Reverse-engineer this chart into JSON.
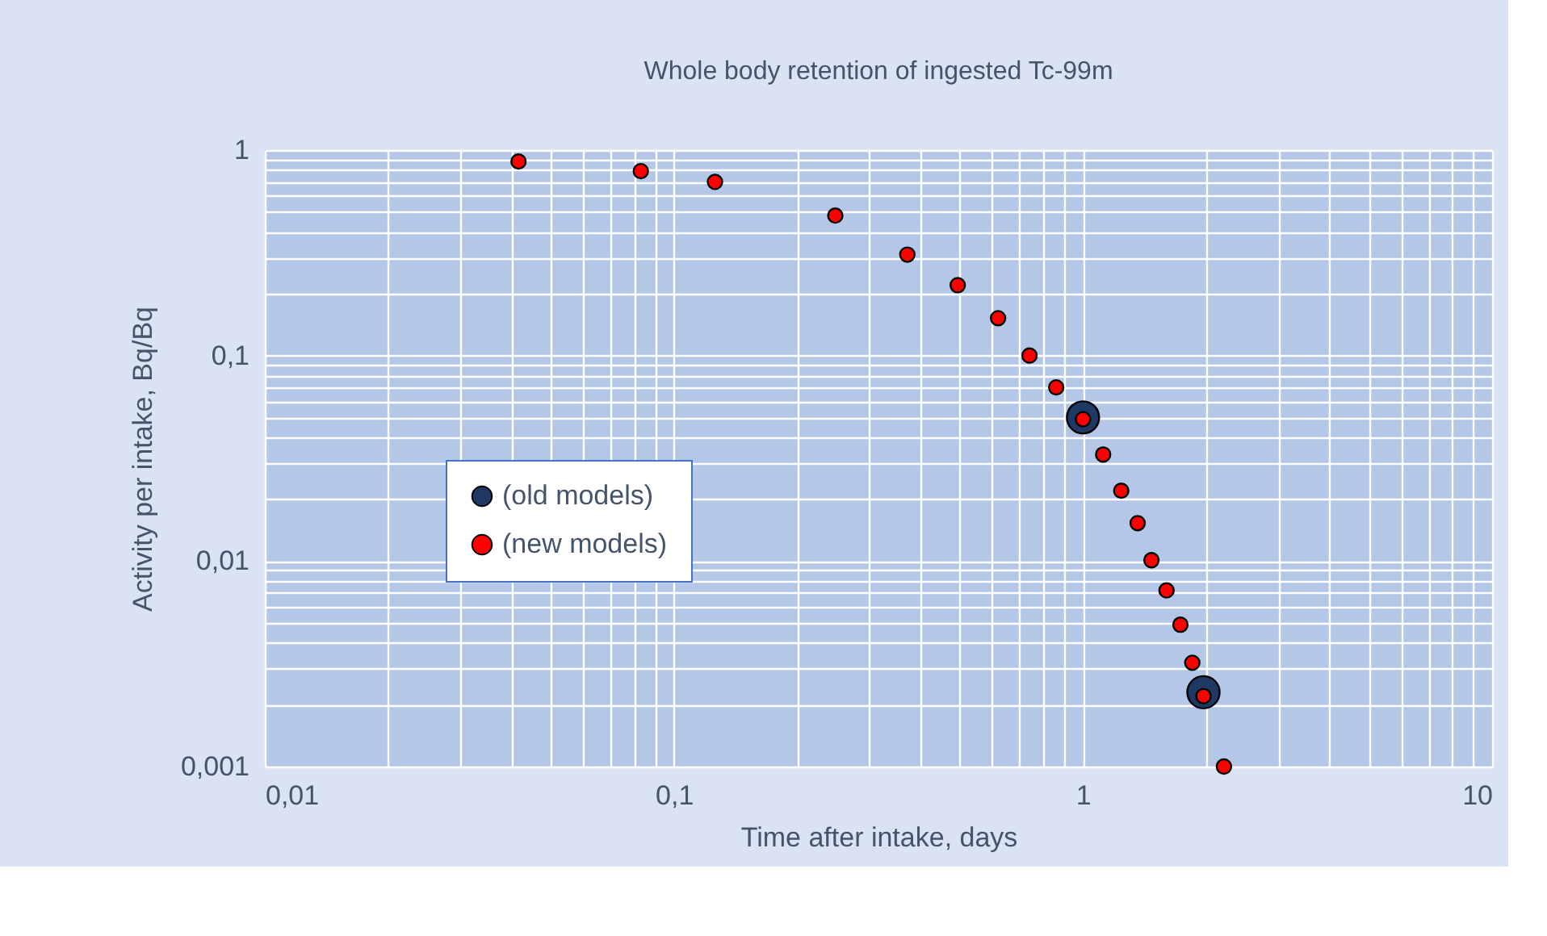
{
  "chart_data": {
    "type": "scatter",
    "title": "Whole body retention of ingested Tc-99m",
    "xlabel": "Time after intake, days",
    "ylabel": "Activity per intake, Bq/Bq",
    "log": "xy",
    "grid": true,
    "legend": "left",
    "marker": "circle",
    "xlim": [
      0.01,
      10
    ],
    "ylim": [
      0.001,
      1
    ],
    "xticks": [
      {
        "value": 0.01,
        "label": "0,01"
      },
      {
        "value": 0.1,
        "label": "0,1"
      },
      1,
      10
    ],
    "yticks": [
      {
        "value": 0.001,
        "label": "0,001"
      },
      {
        "value": 0.01,
        "label": "0,01"
      },
      {
        "value": 0.1,
        "label": "0,1"
      },
      1
    ],
    "series": [
      {
        "name": "(old models)",
        "color": "#1f3864",
        "x": [
          1.0,
          1.97
        ],
        "values": [
          0.05,
          0.0023
        ]
      },
      {
        "name": "(new models)",
        "color": "#ff0000",
        "x": [
          0.0417,
          0.083,
          0.126,
          0.248,
          0.372,
          0.494,
          0.62,
          0.74,
          0.86,
          1.0,
          1.12,
          1.24,
          1.36,
          1.47,
          1.6,
          1.73,
          1.85,
          1.97,
          2.21
        ],
        "values": [
          0.88,
          0.79,
          0.7,
          0.48,
          0.31,
          0.22,
          0.152,
          0.1,
          0.07,
          0.049,
          0.033,
          0.022,
          0.0153,
          0.0101,
          0.0072,
          0.0049,
          0.0032,
          0.0022,
          0.001
        ]
      }
    ]
  }
}
